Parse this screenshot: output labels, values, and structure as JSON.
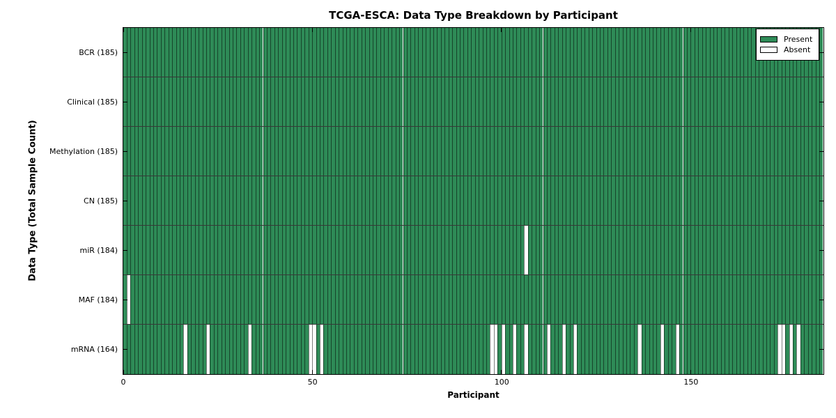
{
  "chart_data": {
    "type": "heatmap",
    "title": "TCGA-ESCA: Data Type Breakdown by Participant",
    "xlabel": "Participant",
    "ylabel": "Data Type (Total Sample Count)",
    "n_participants": 185,
    "x_ticks": [
      0,
      50,
      100,
      150
    ],
    "x_range": [
      0,
      185
    ],
    "grid": false,
    "legend_position": "upper right",
    "legend": [
      {
        "label": "Present",
        "color": "#2e8b57"
      },
      {
        "label": "Absent",
        "color": "#ffffff"
      }
    ],
    "colors": {
      "present": "#2e8b57",
      "absent": "#ffffff",
      "edge": "#000000"
    },
    "rows": [
      {
        "name": "BCR",
        "label": "BCR (185)",
        "total_samples": 185,
        "absent_participants": []
      },
      {
        "name": "Clinical",
        "label": "Clinical (185)",
        "total_samples": 185,
        "absent_participants": []
      },
      {
        "name": "Methylation",
        "label": "Methylation (185)",
        "total_samples": 185,
        "absent_participants": []
      },
      {
        "name": "CN",
        "label": "CN (185)",
        "total_samples": 185,
        "absent_participants": []
      },
      {
        "name": "miR",
        "label": "miR (184)",
        "total_samples": 184,
        "absent_participants": [
          106
        ]
      },
      {
        "name": "MAF",
        "label": "MAF (184)",
        "total_samples": 184,
        "absent_participants": [
          1
        ]
      },
      {
        "name": "mRNA",
        "label": "mRNA (164)",
        "total_samples": 164,
        "absent_participants": [
          16,
          22,
          33,
          49,
          50,
          52,
          97,
          98,
          100,
          103,
          106,
          112,
          116,
          119,
          136,
          142,
          146,
          173,
          174,
          176,
          178
        ]
      }
    ]
  }
}
